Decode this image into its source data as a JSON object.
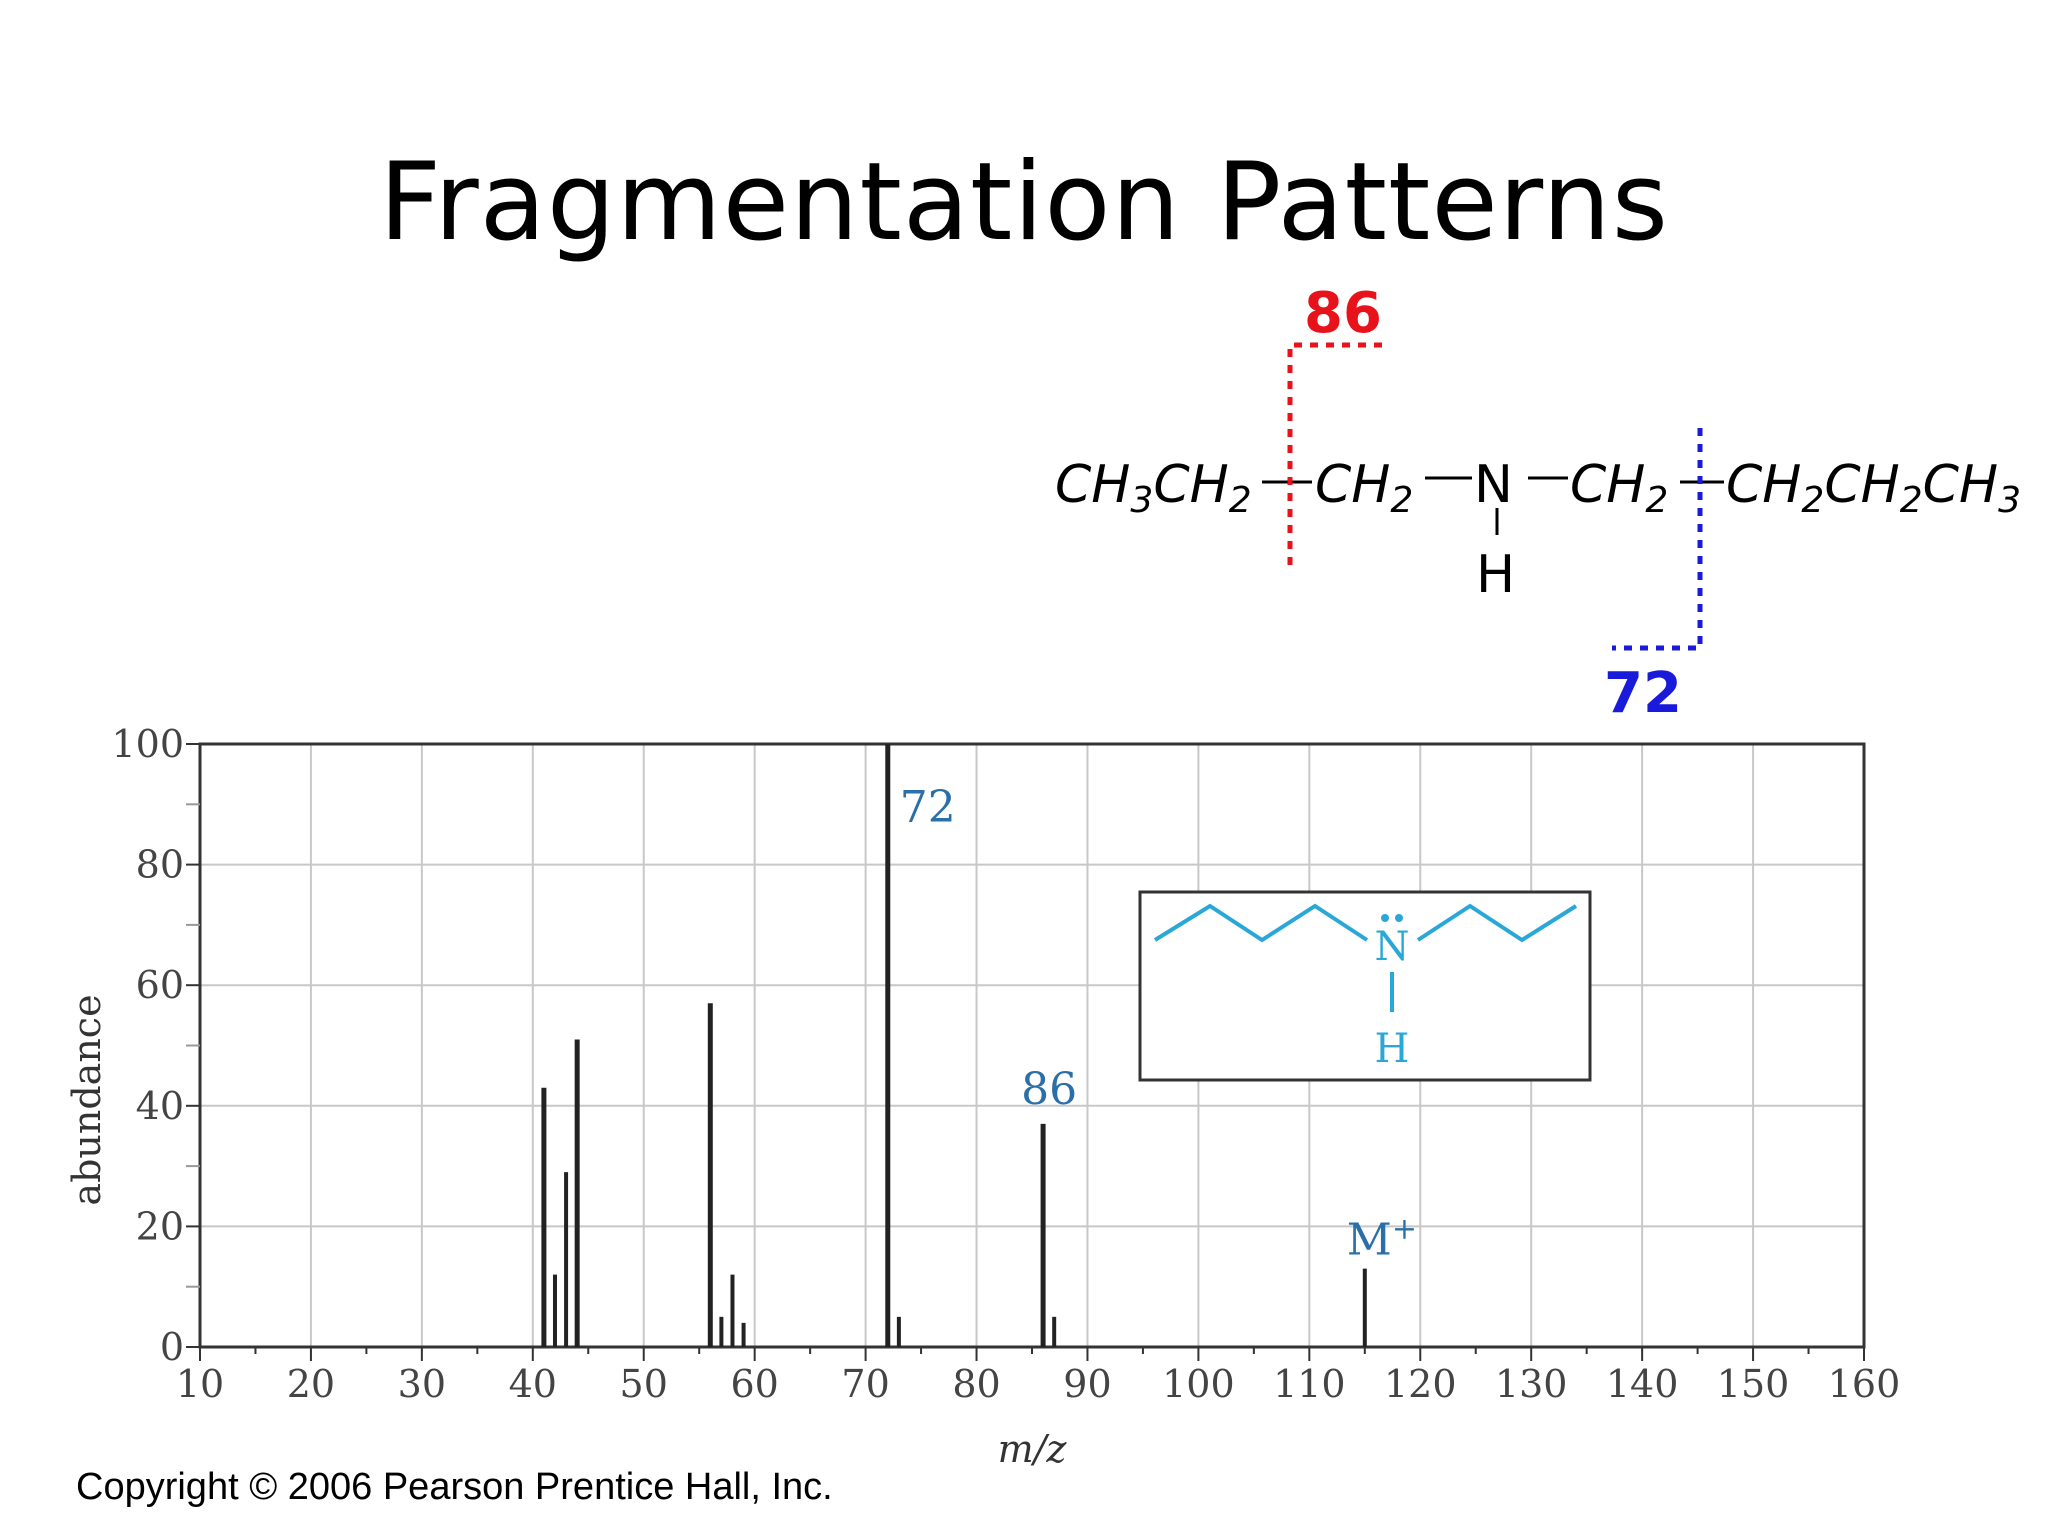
{
  "slide": {
    "title": "Fragmentation Patterns",
    "copyright": "Copyright © 2006 Pearson Prentice Hall, Inc."
  },
  "structure": {
    "group_left": "CH₃CH₂",
    "group_ch2_a": "CH₂",
    "nitrogen": "N",
    "group_ch2_b": "CH₂",
    "group_right": "CH₂CH₂CH₃",
    "hydrogen": "H",
    "cleavage_red_label": "86",
    "cleavage_blue_label": "72",
    "red_color": "#e8121b",
    "blue_color": "#1a1adb"
  },
  "inset": {
    "nitrogen": "N",
    "hydrogen": "H",
    "color": "#29a8d8"
  },
  "chart_data": {
    "type": "bar",
    "xlabel": "m/z",
    "ylabel": "abundance",
    "xlim": [
      10,
      160
    ],
    "ylim": [
      0,
      100
    ],
    "x_ticks": [
      10,
      20,
      30,
      40,
      50,
      60,
      70,
      80,
      90,
      100,
      110,
      120,
      130,
      140,
      150,
      160
    ],
    "y_ticks": [
      0,
      20,
      40,
      60,
      80,
      100
    ],
    "grid": true,
    "peaks": [
      {
        "x": 41,
        "y": 43
      },
      {
        "x": 42,
        "y": 12
      },
      {
        "x": 43,
        "y": 29
      },
      {
        "x": 44,
        "y": 51
      },
      {
        "x": 56,
        "y": 57
      },
      {
        "x": 57,
        "y": 5
      },
      {
        "x": 58,
        "y": 12
      },
      {
        "x": 59,
        "y": 4
      },
      {
        "x": 72,
        "y": 100
      },
      {
        "x": 73,
        "y": 5
      },
      {
        "x": 86,
        "y": 37
      },
      {
        "x": 87,
        "y": 5
      },
      {
        "x": 115,
        "y": 13
      }
    ],
    "annotations": [
      {
        "text": "72",
        "x": 72,
        "y": 100
      },
      {
        "text": "86",
        "x": 86,
        "y": 37
      },
      {
        "text": "M",
        "sup": "+",
        "x": 115,
        "y": 13
      }
    ],
    "bar_color": "#222222",
    "label_color": "#2a6fa8"
  }
}
